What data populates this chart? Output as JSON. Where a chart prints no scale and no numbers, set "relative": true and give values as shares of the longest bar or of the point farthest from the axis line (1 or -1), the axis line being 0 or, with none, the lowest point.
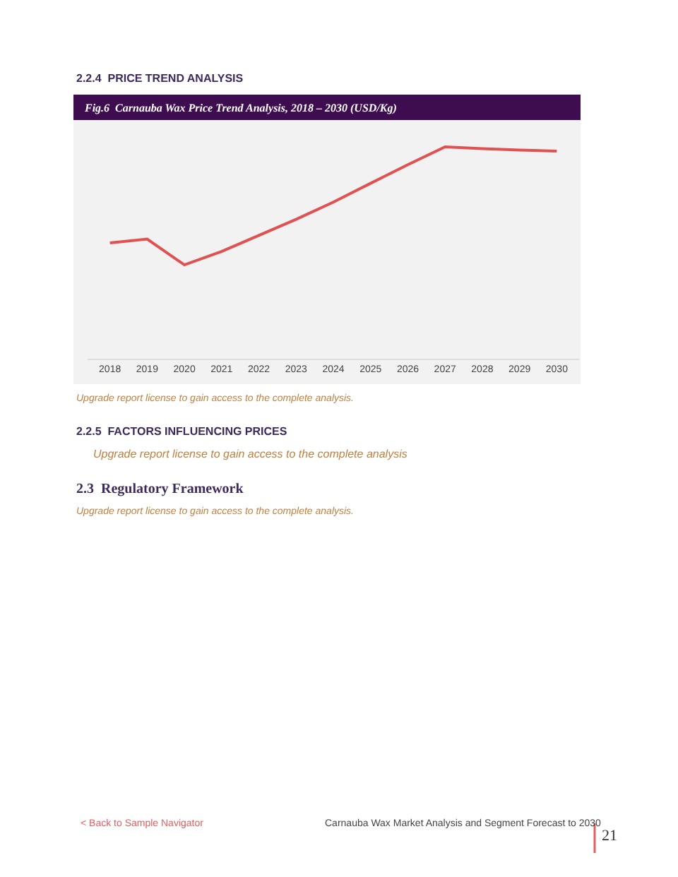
{
  "chart_data": {
    "type": "line",
    "relative": true,
    "title": "Fig.6  Carnauba Wax Price Trend Analysis, 2018 – 2030 (USD/Kg)",
    "categories": [
      "2018",
      "2019",
      "2020",
      "2021",
      "2022",
      "2023",
      "2024",
      "2025",
      "2026",
      "2027",
      "2028",
      "2029",
      "2030"
    ],
    "series": [
      {
        "color": "#e05252",
        "values": [
          0.547,
          0.565,
          0.443,
          0.506,
          0.582,
          0.658,
          0.739,
          0.828,
          0.916,
          1,
          0.992,
          0.985,
          0.98
        ]
      }
    ],
    "grid": false,
    "marker": "none",
    "line_style": "solid",
    "annotations": [
      "2.2.4  PRICE TREND ANALYSIS",
      "Upgrade report license to gain access to the complete analysis.",
      "2.2.5  FACTORS INFLUENCING PRICES",
      "Upgrade report license to gain access to the complete analysis",
      "2.3  Regulatory Framework",
      "Upgrade report license to gain access to the complete analysis.",
      "< Back to Sample Navigator",
      "Carnauba Wax Market Analysis and Segment Forecast to 2030",
      "21"
    ]
  }
}
